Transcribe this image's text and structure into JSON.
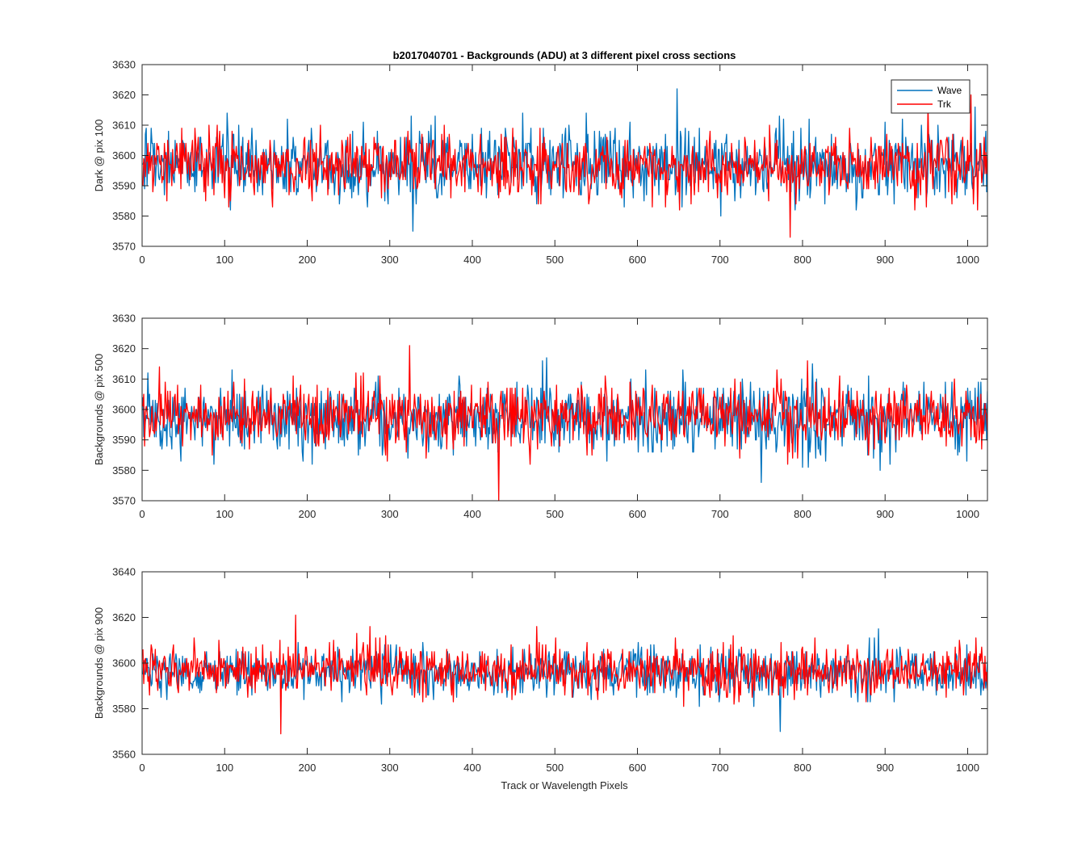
{
  "figure": {
    "title": "b2017040701 - Backgrounds (ADU) at 3 different pixel cross sections",
    "xlabel": "Track or Wavelength Pixels",
    "legend": [
      "Wave",
      "Trk"
    ]
  },
  "colors": {
    "wave": "#0072BD",
    "trk": "#FF0000"
  },
  "chart_data": [
    {
      "type": "line",
      "ylabel": "Dark @ pix 100",
      "xlim": [
        0,
        1024
      ],
      "ylim": [
        3570,
        3630
      ],
      "xticks": [
        0,
        100,
        200,
        300,
        400,
        500,
        600,
        700,
        800,
        900,
        1000
      ],
      "yticks": [
        3570,
        3580,
        3590,
        3600,
        3610,
        3620,
        3630
      ],
      "legend_location": "top-right",
      "series": [
        {
          "name": "Wave",
          "n_points": 1024,
          "mean": 3597,
          "std": 6.8,
          "min": 3575,
          "max": 3622
        },
        {
          "name": "Trk",
          "n_points": 1024,
          "mean": 3597,
          "std": 6.2,
          "min": 3573,
          "max": 3620
        }
      ]
    },
    {
      "type": "line",
      "ylabel": "Backgrounds @ pix 500",
      "xlim": [
        0,
        1024
      ],
      "ylim": [
        3570,
        3630
      ],
      "xticks": [
        0,
        100,
        200,
        300,
        400,
        500,
        600,
        700,
        800,
        900,
        1000
      ],
      "yticks": [
        3570,
        3580,
        3590,
        3600,
        3610,
        3620,
        3630
      ],
      "series": [
        {
          "name": "Wave",
          "n_points": 1024,
          "mean": 3597,
          "std": 6.8,
          "min": 3576,
          "max": 3617
        },
        {
          "name": "Trk",
          "n_points": 1024,
          "mean": 3598,
          "std": 6.3,
          "min": 3570,
          "max": 3621
        }
      ]
    },
    {
      "type": "line",
      "ylabel": "Backgrounds @ pix 900",
      "xlim": [
        0,
        1024
      ],
      "ylim": [
        3560,
        3640
      ],
      "xticks": [
        0,
        100,
        200,
        300,
        400,
        500,
        600,
        700,
        800,
        900,
        1000
      ],
      "yticks": [
        3560,
        3580,
        3600,
        3620,
        3640
      ],
      "series": [
        {
          "name": "Wave",
          "n_points": 1024,
          "mean": 3596,
          "std": 6.0,
          "min": 3570,
          "max": 3615
        },
        {
          "name": "Trk",
          "n_points": 1024,
          "mean": 3597,
          "std": 6.5,
          "min": 3569,
          "max": 3621
        }
      ]
    }
  ]
}
